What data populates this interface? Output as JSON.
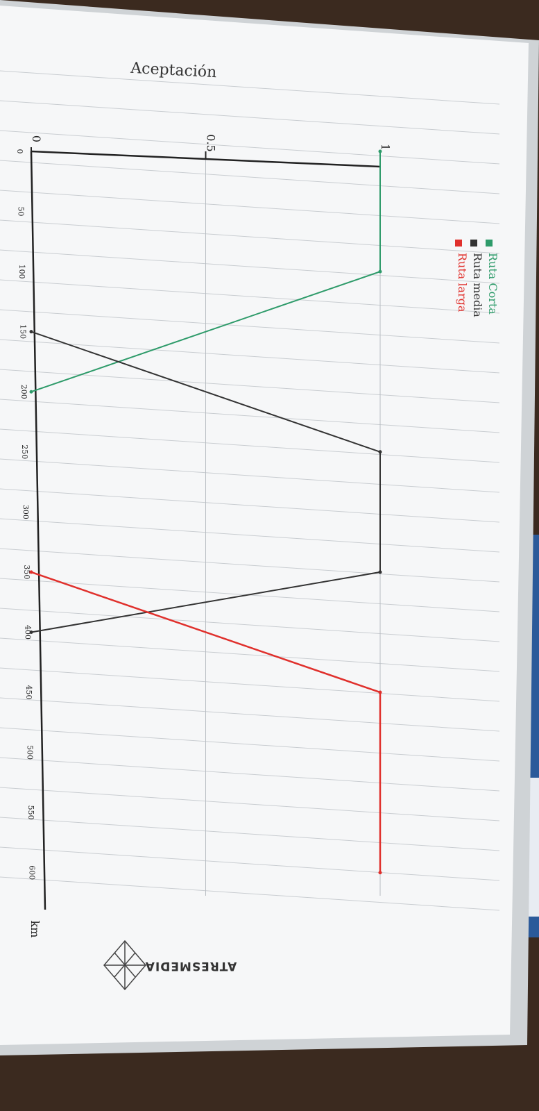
{
  "chart_data": {
    "type": "line",
    "title": "",
    "ylabel": "Aceptación",
    "xlabel": "km",
    "xlim": [
      0,
      625
    ],
    "ylim": [
      0,
      1
    ],
    "x_ticks": [
      0,
      50,
      100,
      150,
      200,
      250,
      300,
      350,
      400,
      450,
      500,
      550,
      600
    ],
    "x_tick_labels": [
      "0",
      "50",
      "100",
      "150",
      "200",
      "250",
      "300",
      "350",
      "400",
      "450",
      "500",
      "550",
      "600"
    ],
    "y_ticks": [
      0,
      0.5,
      1
    ],
    "y_tick_labels": [
      "0",
      "0.5",
      "1"
    ],
    "legend_position": "upper-middle",
    "grid": true,
    "series": [
      {
        "name": "Ruta Corta",
        "color": "#2e9b6a",
        "points": [
          [
            0,
            1
          ],
          [
            100,
            1
          ],
          [
            200,
            0
          ]
        ]
      },
      {
        "name": "Ruta media",
        "color": "#333333",
        "points": [
          [
            150,
            0
          ],
          [
            250,
            1
          ],
          [
            350,
            1
          ],
          [
            400,
            0
          ]
        ]
      },
      {
        "name": "Ruta larga",
        "color": "#e0302c",
        "points": [
          [
            350,
            0
          ],
          [
            450,
            1
          ],
          [
            600,
            1
          ]
        ]
      }
    ]
  },
  "logo": {
    "text": "ATRESMEDIA"
  }
}
